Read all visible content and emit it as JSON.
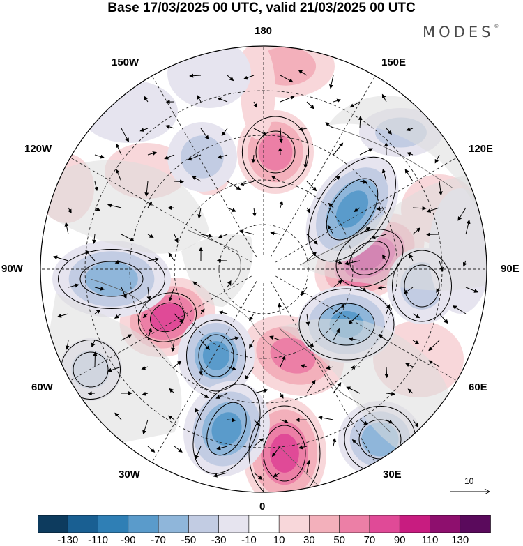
{
  "title": "Base 17/03/2025 00 UTC, valid 21/03/2025 00 UTC",
  "brand": "MODES",
  "brand_mark": "©",
  "longitude_labels": {
    "lon_180": "180",
    "lon_150E": "150E",
    "lon_120E": "120E",
    "lon_90E": "90E",
    "lon_60E": "60E",
    "lon_30E": "30E",
    "lon_0": "0",
    "lon_30W": "30W",
    "lon_60W": "60W",
    "lon_90W": "90W",
    "lon_120W": "120W",
    "lon_150W": "150W"
  },
  "vector_scale": {
    "label": "10"
  },
  "colorbar": {
    "labels": [
      "-130",
      "-110",
      "-90",
      "-70",
      "-50",
      "-30",
      "-10",
      "10",
      "30",
      "50",
      "70",
      "90",
      "110",
      "130"
    ],
    "colors": [
      "#0d3b5e",
      "#195f92",
      "#2f7fb5",
      "#5a9bcb",
      "#8fb6da",
      "#c2cce3",
      "#e6e4ef",
      "#ffffff",
      "#f8d7da",
      "#f3b0bb",
      "#ec7fa6",
      "#e04a97",
      "#c81c80",
      "#8e0f6e",
      "#5a0a5c"
    ]
  },
  "map": {
    "projection": "north polar stereographic",
    "field": "geopotential height anomaly (shaded) with wind vectors"
  }
}
